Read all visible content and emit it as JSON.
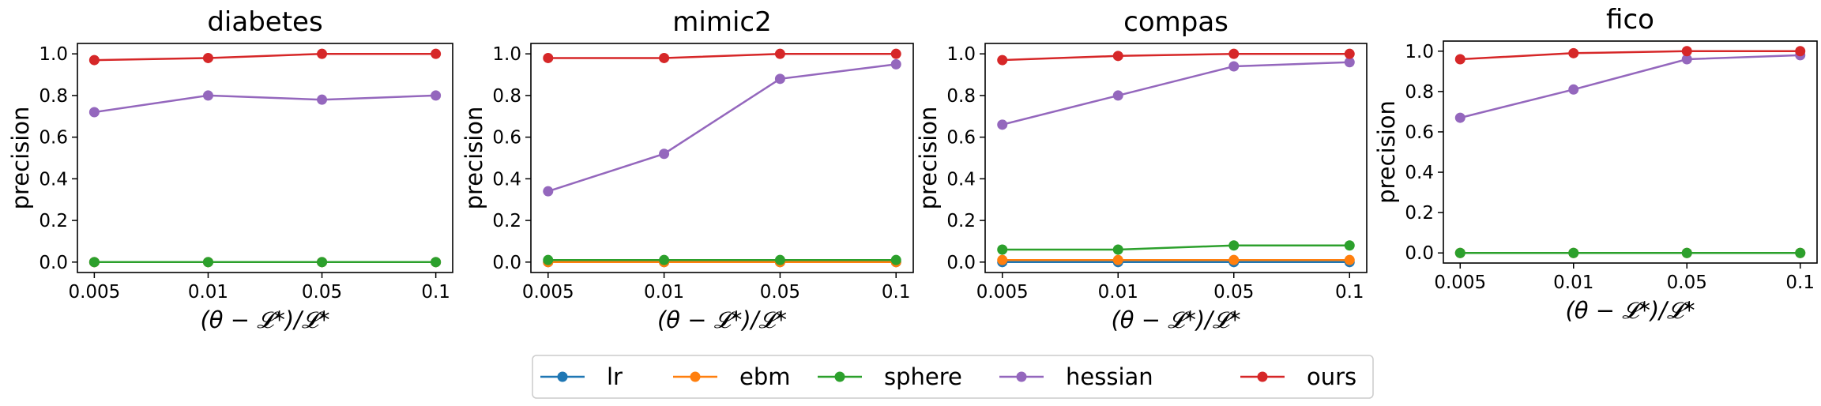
{
  "chart_data": [
    {
      "type": "line",
      "title": "diabetes",
      "xlabel": "(θ − 𝓛*)/𝓛*",
      "ylabel": "precision",
      "categories": [
        "0.005",
        "0.01",
        "0.05",
        "0.1"
      ],
      "ylim": [
        -0.05,
        1.05
      ],
      "yticks": [
        "0.0",
        "0.2",
        "0.4",
        "0.6",
        "0.8",
        "1.0"
      ],
      "series": [
        {
          "name": "lr",
          "values": [
            0.0,
            0.0,
            0.0,
            0.0
          ]
        },
        {
          "name": "ebm",
          "values": [
            0.0,
            0.0,
            0.0,
            0.0
          ]
        },
        {
          "name": "sphere",
          "values": [
            0.0,
            0.0,
            0.0,
            0.0
          ]
        },
        {
          "name": "hessian",
          "values": [
            0.72,
            0.8,
            0.78,
            0.8
          ]
        },
        {
          "name": "ours",
          "values": [
            0.97,
            0.98,
            1.0,
            1.0
          ]
        }
      ]
    },
    {
      "type": "line",
      "title": "mimic2",
      "xlabel": "(θ − 𝓛*)/𝓛*",
      "ylabel": "precision",
      "categories": [
        "0.005",
        "0.01",
        "0.05",
        "0.1"
      ],
      "ylim": [
        -0.05,
        1.05
      ],
      "yticks": [
        "0.0",
        "0.2",
        "0.4",
        "0.6",
        "0.8",
        "1.0"
      ],
      "series": [
        {
          "name": "lr",
          "values": [
            0.0,
            0.0,
            0.0,
            0.0
          ]
        },
        {
          "name": "ebm",
          "values": [
            0.0,
            0.0,
            0.0,
            0.0
          ]
        },
        {
          "name": "sphere",
          "values": [
            0.01,
            0.01,
            0.01,
            0.01
          ]
        },
        {
          "name": "hessian",
          "values": [
            0.34,
            0.52,
            0.88,
            0.95
          ]
        },
        {
          "name": "ours",
          "values": [
            0.98,
            0.98,
            1.0,
            1.0
          ]
        }
      ]
    },
    {
      "type": "line",
      "title": "compas",
      "xlabel": "(θ − 𝓛*)/𝓛*",
      "ylabel": "precision",
      "categories": [
        "0.005",
        "0.01",
        "0.05",
        "0.1"
      ],
      "ylim": [
        -0.05,
        1.05
      ],
      "yticks": [
        "0.0",
        "0.2",
        "0.4",
        "0.6",
        "0.8",
        "1.0"
      ],
      "series": [
        {
          "name": "lr",
          "values": [
            0.0,
            0.0,
            0.0,
            0.0
          ]
        },
        {
          "name": "ebm",
          "values": [
            0.01,
            0.01,
            0.01,
            0.01
          ]
        },
        {
          "name": "sphere",
          "values": [
            0.06,
            0.06,
            0.08,
            0.08
          ]
        },
        {
          "name": "hessian",
          "values": [
            0.66,
            0.8,
            0.94,
            0.96
          ]
        },
        {
          "name": "ours",
          "values": [
            0.97,
            0.99,
            1.0,
            1.0
          ]
        }
      ]
    },
    {
      "type": "line",
      "title": "fico",
      "xlabel": "(θ − 𝓛*)/𝓛*",
      "ylabel": "precision",
      "categories": [
        "0.005",
        "0.01",
        "0.05",
        "0.1"
      ],
      "ylim": [
        -0.05,
        1.05
      ],
      "yticks": [
        "0.0",
        "0.2",
        "0.4",
        "0.6",
        "0.8",
        "1.0"
      ],
      "series": [
        {
          "name": "lr",
          "values": [
            0.0,
            0.0,
            0.0,
            0.0
          ]
        },
        {
          "name": "ebm",
          "values": [
            0.0,
            0.0,
            0.0,
            0.0
          ]
        },
        {
          "name": "sphere",
          "values": [
            0.0,
            0.0,
            0.0,
            0.0
          ]
        },
        {
          "name": "hessian",
          "values": [
            0.67,
            0.81,
            0.96,
            0.98
          ]
        },
        {
          "name": "ours",
          "values": [
            0.96,
            0.99,
            1.0,
            1.0
          ]
        }
      ]
    }
  ],
  "legend": {
    "placement": "bottom-center",
    "entries": [
      {
        "name": "lr",
        "color": "#1f77b4"
      },
      {
        "name": "ebm",
        "color": "#ff7f0e"
      },
      {
        "name": "sphere",
        "color": "#2ca02c"
      },
      {
        "name": "hessian",
        "color": "#9467bd"
      },
      {
        "name": "ours",
        "color": "#d62728"
      }
    ]
  }
}
